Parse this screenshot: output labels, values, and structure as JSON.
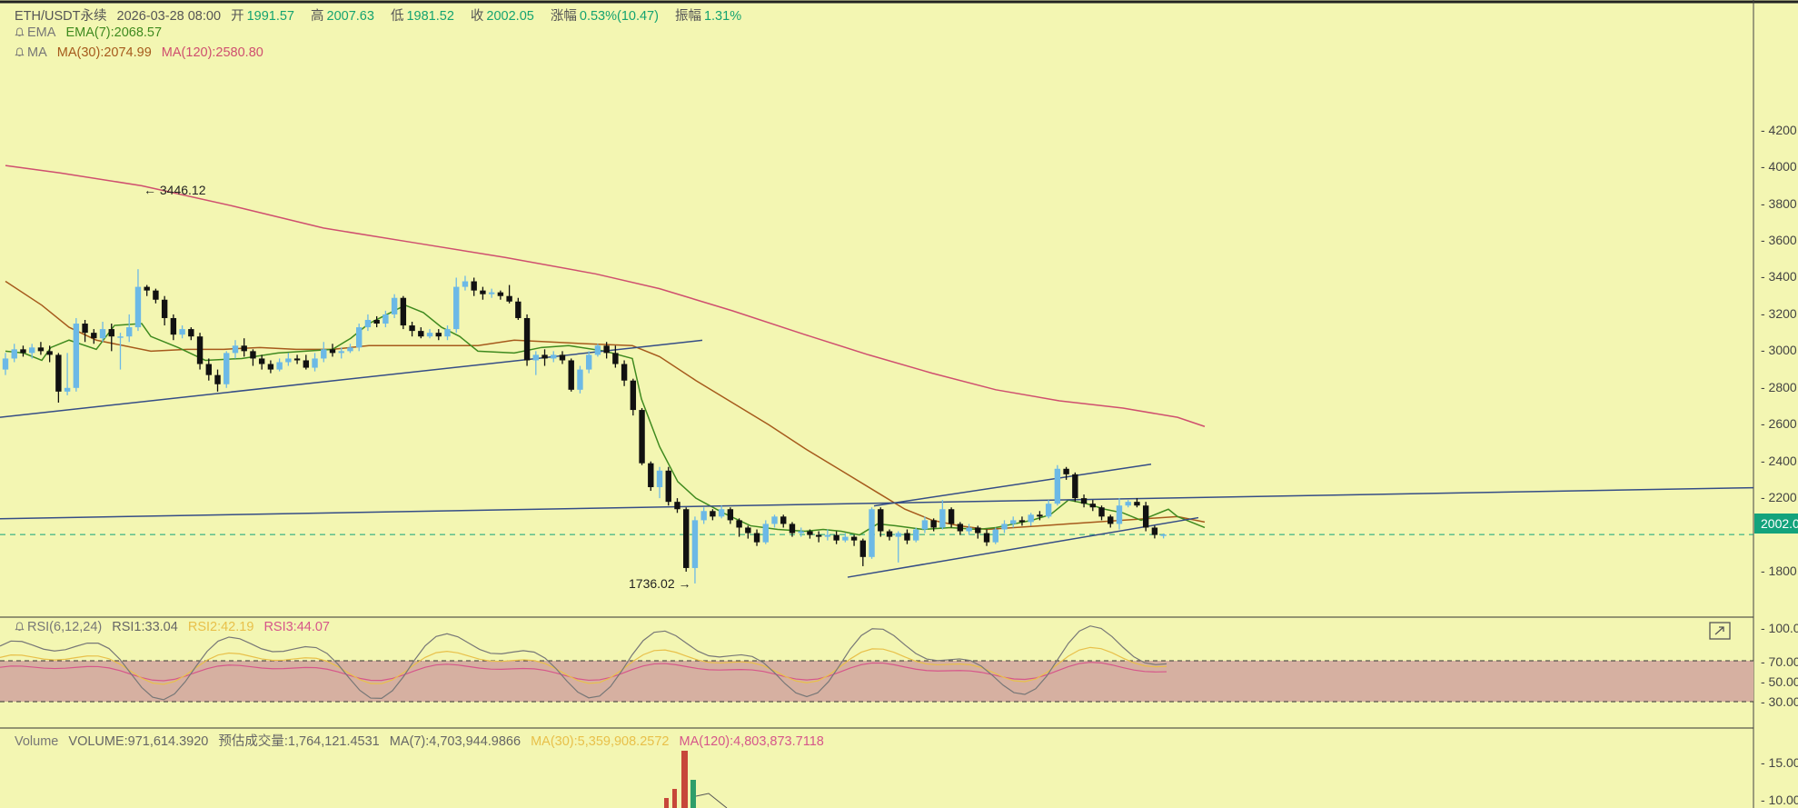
{
  "header": {
    "symbol": "ETH/USDT永续",
    "datetime": "2026-03-28 08:00",
    "open_label": "开",
    "open": "1991.57",
    "high_label": "高",
    "high": "2007.63",
    "low_label": "低",
    "low": "1981.52",
    "close_label": "收",
    "close": "2002.05",
    "change_label": "涨幅",
    "change": "0.53%(10.47)",
    "amp_label": "振幅",
    "amp": "1.31%"
  },
  "indicators": {
    "ema_name": "EMA",
    "ema7": "EMA(7):2068.57",
    "ma_name": "MA",
    "ma30": "MA(30):2074.99",
    "ma120": "MA(120):2580.80"
  },
  "rsi": {
    "name": "RSI(6,12,24)",
    "rsi1": "RSI1:33.04",
    "rsi2": "RSI2:42.19",
    "rsi3": "RSI3:44.07",
    "ticks": [
      "100.00",
      "70.00",
      "50.00",
      "30.00"
    ]
  },
  "volume": {
    "name": "Volume",
    "value": "VOLUME:971,614.3920",
    "est": "预估成交量:1,764,121.4531",
    "ma7": "MA(7):4,703,944.9866",
    "ma30": "MA(30):5,359,908.2572",
    "ma120": "MA(120):4,803,873.7118",
    "ticks": [
      "15.00",
      "10.00"
    ]
  },
  "price_axis": {
    "ticks": [
      "4200.00",
      "4000.00",
      "3800.00",
      "3600.00",
      "3400.00",
      "3200.00",
      "3000.00",
      "2800.00",
      "2600.00",
      "2400.00",
      "2200.00",
      "1800.00"
    ],
    "current": "2002.05"
  },
  "annotations": {
    "high": "3446.12",
    "low": "1736.02"
  },
  "colors": {
    "bg": "#f3f6b2",
    "up": "#6cb9e6",
    "down": "#111111",
    "ema7": "#3f8a1f",
    "ma30": "#a65a1c",
    "ma120": "#cf4f6f",
    "trend": "#354d86",
    "tag": "#13a37c"
  },
  "chart_data": {
    "type": "candlestick",
    "title": "ETH/USDT永续",
    "ylim": [
      1700,
      4300
    ],
    "candles": [
      [
        2900,
        2960,
        2870,
        2990
      ],
      [
        2960,
        3010,
        2940,
        3040
      ],
      [
        3010,
        2990,
        2970,
        3030
      ],
      [
        2990,
        3020,
        2960,
        3040
      ],
      [
        3020,
        3000,
        2980,
        3050
      ],
      [
        3000,
        2980,
        2940,
        3030
      ],
      [
        2980,
        2780,
        2720,
        2990
      ],
      [
        2780,
        2800,
        2760,
        2990
      ],
      [
        2800,
        3150,
        2780,
        3180
      ],
      [
        3150,
        3100,
        3050,
        3170
      ],
      [
        3100,
        3070,
        3040,
        3120
      ],
      [
        3070,
        3120,
        3050,
        3160
      ],
      [
        3120,
        3080,
        3000,
        3150
      ],
      [
        3080,
        3080,
        2900,
        3100
      ],
      [
        3080,
        3130,
        3050,
        3200
      ],
      [
        3130,
        3350,
        3110,
        3446
      ],
      [
        3350,
        3330,
        3300,
        3360
      ],
      [
        3330,
        3280,
        3260,
        3340
      ],
      [
        3280,
        3180,
        3140,
        3300
      ],
      [
        3180,
        3090,
        3060,
        3200
      ],
      [
        3090,
        3120,
        3070,
        3140
      ],
      [
        3120,
        3080,
        3060,
        3130
      ],
      [
        3080,
        2930,
        2900,
        3100
      ],
      [
        2930,
        2870,
        2840,
        2960
      ],
      [
        2870,
        2820,
        2780,
        2900
      ],
      [
        2820,
        2990,
        2800,
        3000
      ],
      [
        2990,
        3030,
        2960,
        3060
      ],
      [
        3030,
        3000,
        2970,
        3070
      ],
      [
        3000,
        2960,
        2920,
        3010
      ],
      [
        2960,
        2930,
        2900,
        2980
      ],
      [
        2930,
        2900,
        2880,
        2950
      ],
      [
        2900,
        2940,
        2890,
        2960
      ],
      [
        2940,
        2960,
        2920,
        2990
      ],
      [
        2960,
        2950,
        2930,
        2980
      ],
      [
        2950,
        2910,
        2900,
        2980
      ],
      [
        2910,
        2960,
        2890,
        2990
      ],
      [
        2960,
        3010,
        2940,
        3050
      ],
      [
        3010,
        2990,
        2970,
        3040
      ],
      [
        2990,
        3000,
        2960,
        3020
      ],
      [
        3000,
        3020,
        2990,
        3040
      ],
      [
        3020,
        3130,
        3000,
        3150
      ],
      [
        3130,
        3170,
        3110,
        3200
      ],
      [
        3170,
        3150,
        3130,
        3190
      ],
      [
        3150,
        3200,
        3130,
        3220
      ],
      [
        3200,
        3290,
        3180,
        3310
      ],
      [
        3290,
        3140,
        3120,
        3300
      ],
      [
        3140,
        3110,
        3080,
        3160
      ],
      [
        3110,
        3080,
        3070,
        3130
      ],
      [
        3080,
        3100,
        3070,
        3120
      ],
      [
        3100,
        3080,
        3060,
        3120
      ],
      [
        3080,
        3120,
        3060,
        3140
      ],
      [
        3120,
        3350,
        3100,
        3400
      ],
      [
        3350,
        3380,
        3330,
        3410
      ],
      [
        3380,
        3330,
        3300,
        3400
      ],
      [
        3330,
        3310,
        3280,
        3350
      ],
      [
        3310,
        3320,
        3290,
        3340
      ],
      [
        3320,
        3300,
        3280,
        3330
      ],
      [
        3300,
        3270,
        3260,
        3360
      ],
      [
        3270,
        3180,
        3170,
        3290
      ],
      [
        3180,
        2950,
        2920,
        3200
      ],
      [
        2950,
        2980,
        2870,
        3000
      ],
      [
        2980,
        2960,
        2920,
        3010
      ],
      [
        2960,
        2980,
        2940,
        3000
      ],
      [
        2980,
        2950,
        2930,
        3000
      ],
      [
        2950,
        2790,
        2780,
        2960
      ],
      [
        2790,
        2900,
        2770,
        2920
      ],
      [
        2900,
        2980,
        2880,
        3000
      ],
      [
        2980,
        3030,
        2970,
        3040
      ],
      [
        3030,
        2990,
        2960,
        3050
      ],
      [
        2990,
        2930,
        2910,
        3030
      ],
      [
        2930,
        2840,
        2810,
        2950
      ],
      [
        2840,
        2680,
        2650,
        2850
      ],
      [
        2680,
        2390,
        2380,
        2690
      ],
      [
        2390,
        2260,
        2240,
        2400
      ],
      [
        2260,
        2350,
        2200,
        2370
      ],
      [
        2350,
        2180,
        2160,
        2370
      ],
      [
        2180,
        2140,
        2120,
        2200
      ],
      [
        2140,
        1820,
        1800,
        2150
      ],
      [
        1820,
        2080,
        1736,
        2100
      ],
      [
        2080,
        2130,
        2060,
        2150
      ],
      [
        2130,
        2100,
        2080,
        2140
      ],
      [
        2100,
        2140,
        2090,
        2160
      ],
      [
        2140,
        2080,
        2060,
        2150
      ],
      [
        2080,
        2040,
        1990,
        2090
      ],
      [
        2040,
        2010,
        1980,
        2050
      ],
      [
        2010,
        1960,
        1940,
        2030
      ],
      [
        1960,
        2060,
        1950,
        2080
      ],
      [
        2060,
        2100,
        2040,
        2110
      ],
      [
        2100,
        2060,
        2040,
        2110
      ],
      [
        2060,
        2010,
        1990,
        2070
      ],
      [
        2010,
        2020,
        1990,
        2040
      ],
      [
        2020,
        2000,
        1980,
        2030
      ],
      [
        2000,
        1990,
        1960,
        2020
      ],
      [
        1990,
        2000,
        1970,
        2030
      ],
      [
        2000,
        1970,
        1950,
        2020
      ],
      [
        1970,
        1990,
        1960,
        2010
      ],
      [
        1990,
        1970,
        1940,
        2000
      ],
      [
        1970,
        1880,
        1830,
        1980
      ],
      [
        1880,
        2140,
        1870,
        2150
      ],
      [
        2140,
        2020,
        1990,
        2150
      ],
      [
        2020,
        1990,
        1970,
        2030
      ],
      [
        1990,
        2010,
        1850,
        2020
      ],
      [
        2010,
        1970,
        1950,
        2030
      ],
      [
        1970,
        2030,
        1960,
        2040
      ],
      [
        2030,
        2080,
        2010,
        2100
      ],
      [
        2080,
        2040,
        2020,
        2090
      ],
      [
        2040,
        2140,
        2030,
        2190
      ],
      [
        2140,
        2060,
        2040,
        2150
      ],
      [
        2060,
        2020,
        2000,
        2070
      ],
      [
        2020,
        2040,
        2000,
        2060
      ],
      [
        2040,
        2010,
        1980,
        2050
      ],
      [
        2010,
        1960,
        1940,
        2030
      ],
      [
        1960,
        2030,
        1950,
        2040
      ],
      [
        2030,
        2060,
        2010,
        2080
      ],
      [
        2060,
        2080,
        2040,
        2100
      ],
      [
        2080,
        2070,
        2050,
        2100
      ],
      [
        2070,
        2110,
        2050,
        2120
      ],
      [
        2110,
        2100,
        2080,
        2130
      ],
      [
        2100,
        2170,
        2090,
        2190
      ],
      [
        2170,
        2360,
        2160,
        2380
      ],
      [
        2360,
        2330,
        2300,
        2370
      ],
      [
        2330,
        2200,
        2180,
        2340
      ],
      [
        2200,
        2170,
        2150,
        2220
      ],
      [
        2170,
        2150,
        2130,
        2190
      ],
      [
        2150,
        2100,
        2080,
        2160
      ],
      [
        2100,
        2060,
        2040,
        2110
      ],
      [
        2060,
        2160,
        2030,
        2200
      ],
      [
        2160,
        2180,
        2150,
        2190
      ],
      [
        2180,
        2160,
        2150,
        2200
      ],
      [
        2160,
        2040,
        2020,
        2180
      ],
      [
        2040,
        2000,
        1981,
        2050
      ],
      [
        2000,
        2002,
        1981,
        2008
      ]
    ],
    "ema7": [
      [
        0,
        3000
      ],
      [
        20,
        2990
      ],
      [
        40,
        2950
      ],
      [
        50,
        3020
      ],
      [
        70,
        3060
      ],
      [
        100,
        3010
      ],
      [
        120,
        3140
      ],
      [
        150,
        3150
      ],
      [
        160,
        3080
      ],
      [
        190,
        3020
      ],
      [
        220,
        2950
      ],
      [
        260,
        2960
      ],
      [
        300,
        2990
      ],
      [
        360,
        3010
      ],
      [
        380,
        3070
      ],
      [
        400,
        3150
      ],
      [
        420,
        3200
      ],
      [
        440,
        3250
      ],
      [
        460,
        3210
      ],
      [
        480,
        3130
      ],
      [
        500,
        3080
      ],
      [
        520,
        3000
      ],
      [
        560,
        2990
      ],
      [
        590,
        3020
      ],
      [
        620,
        3030
      ],
      [
        660,
        3000
      ],
      [
        690,
        2960
      ],
      [
        700,
        2740
      ],
      [
        720,
        2480
      ],
      [
        740,
        2290
      ],
      [
        760,
        2200
      ],
      [
        790,
        2120
      ],
      [
        820,
        2050
      ],
      [
        850,
        2030
      ],
      [
        880,
        2020
      ],
      [
        900,
        2030
      ],
      [
        920,
        2020
      ],
      [
        940,
        2000
      ],
      [
        960,
        2060
      ],
      [
        980,
        2050
      ],
      [
        1010,
        2030
      ],
      [
        1040,
        2040
      ],
      [
        1070,
        2030
      ],
      [
        1090,
        2040
      ],
      [
        1110,
        2060
      ],
      [
        1130,
        2080
      ],
      [
        1150,
        2110
      ],
      [
        1170,
        2190
      ],
      [
        1190,
        2170
      ],
      [
        1210,
        2140
      ],
      [
        1230,
        2120
      ],
      [
        1250,
        2080
      ],
      [
        1260,
        2100
      ],
      [
        1280,
        2140
      ],
      [
        1290,
        2100
      ],
      [
        1310,
        2060
      ],
      [
        1320,
        2040
      ]
    ],
    "ma30": [
      [
        0,
        3380
      ],
      [
        40,
        3250
      ],
      [
        70,
        3130
      ],
      [
        100,
        3060
      ],
      [
        130,
        3030
      ],
      [
        160,
        3000
      ],
      [
        200,
        3010
      ],
      [
        240,
        3010
      ],
      [
        280,
        3020
      ],
      [
        320,
        3010
      ],
      [
        360,
        3010
      ],
      [
        400,
        3030
      ],
      [
        440,
        3030
      ],
      [
        480,
        3030
      ],
      [
        520,
        3030
      ],
      [
        560,
        3060
      ],
      [
        600,
        3050
      ],
      [
        640,
        3040
      ],
      [
        690,
        3030
      ],
      [
        720,
        2970
      ],
      [
        760,
        2840
      ],
      [
        800,
        2720
      ],
      [
        840,
        2600
      ],
      [
        880,
        2470
      ],
      [
        920,
        2350
      ],
      [
        960,
        2230
      ],
      [
        990,
        2140
      ],
      [
        1020,
        2080
      ],
      [
        1050,
        2050
      ],
      [
        1080,
        2030
      ],
      [
        1110,
        2040
      ],
      [
        1140,
        2050
      ],
      [
        1170,
        2060
      ],
      [
        1200,
        2070
      ],
      [
        1230,
        2080
      ],
      [
        1260,
        2090
      ],
      [
        1290,
        2100
      ],
      [
        1320,
        2070
      ]
    ],
    "ma120": [
      [
        0,
        4010
      ],
      [
        60,
        3970
      ],
      [
        150,
        3900
      ],
      [
        250,
        3790
      ],
      [
        350,
        3670
      ],
      [
        450,
        3590
      ],
      [
        550,
        3510
      ],
      [
        650,
        3420
      ],
      [
        720,
        3340
      ],
      [
        800,
        3220
      ],
      [
        880,
        3090
      ],
      [
        950,
        2980
      ],
      [
        1020,
        2880
      ],
      [
        1090,
        2790
      ],
      [
        1160,
        2730
      ],
      [
        1230,
        2690
      ],
      [
        1290,
        2640
      ],
      [
        1320,
        2590
      ]
    ],
    "trendlines": [
      [
        [
          0,
          2640
        ],
        [
          773,
          3059
        ]
      ],
      [
        [
          0,
          2088
        ],
        [
          1930,
          2257
        ]
      ],
      [
        [
          962,
          2158
        ],
        [
          1267,
          2385
        ]
      ],
      [
        [
          933,
          1770
        ],
        [
          1319,
          2094
        ]
      ]
    ],
    "rsi_levels": [
      70,
      50,
      30
    ],
    "volume_bars_visible": [
      "red",
      "green"
    ]
  }
}
